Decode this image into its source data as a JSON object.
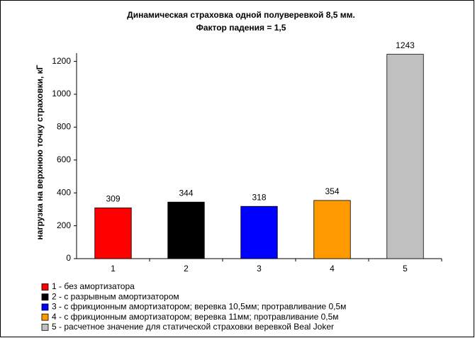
{
  "chart_data": {
    "type": "bar",
    "title": [
      "Динамическая страховка одной полуверевкой 8,5 мм.",
      "Фактор падения = 1,5"
    ],
    "y_label": "нагрузка на верхнюю точку страховки, кГ",
    "categories": [
      "1",
      "2",
      "3",
      "4",
      "5"
    ],
    "values": [
      309,
      344,
      318,
      354,
      1243
    ],
    "colors": [
      "#ff0000",
      "#000000",
      "#0000ff",
      "#ff9900",
      "#c0c0c0"
    ],
    "legend": [
      "1 - без амортизатора",
      "2 - с разрывным амортизатором",
      "3 - с фрикционным амортизатором; веревка 10,5мм; протравливание 0,5м",
      "4 - с фрикционным амортизатором; веревка 11мм; протравливание 0,5м",
      "5 - расчетное значение для статической страховки веревкой Beal Joker"
    ],
    "ylim": [
      0,
      1250
    ],
    "yticks": [
      0,
      200,
      400,
      600,
      800,
      1000,
      1200
    ]
  }
}
